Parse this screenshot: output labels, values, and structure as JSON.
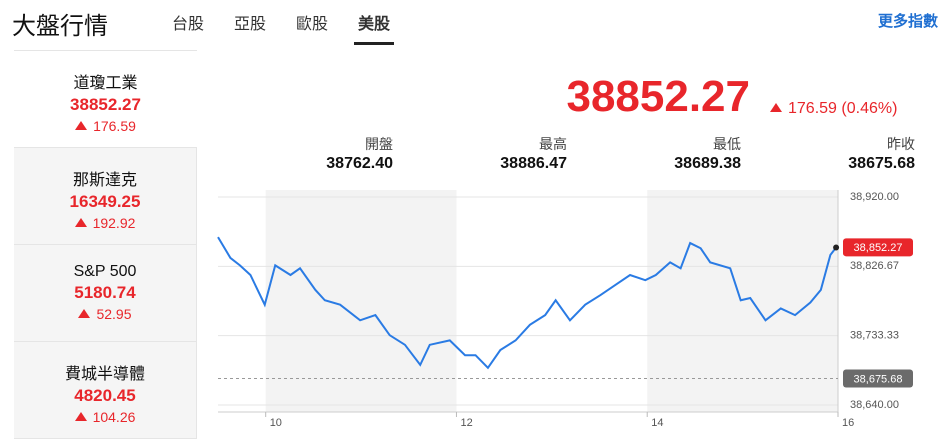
{
  "header": {
    "title": "大盤行情",
    "tabs": [
      "台股",
      "亞股",
      "歐股",
      "美股"
    ],
    "active_tab": 3,
    "more": "更多指數"
  },
  "sidebar": [
    {
      "name": "道瓊工業",
      "value": "38852.27",
      "change": "176.59"
    },
    {
      "name": "那斯達克",
      "value": "16349.25",
      "change": "192.92"
    },
    {
      "name": "S&P 500",
      "value": "5180.74",
      "change": "52.95"
    },
    {
      "name": "費城半導體",
      "value": "4820.45",
      "change": "104.26"
    }
  ],
  "active_item": 0,
  "quote": {
    "value": "38852.27",
    "change": "176.59",
    "change_pct": "(0.46%)",
    "stats": [
      {
        "label": "開盤",
        "value": "38762.40"
      },
      {
        "label": "最高",
        "value": "38886.47"
      },
      {
        "label": "最低",
        "value": "38689.38"
      },
      {
        "label": "昨收",
        "value": "38675.68"
      }
    ]
  },
  "chart_data": {
    "type": "line",
    "x": [
      9.5,
      9.63,
      9.73,
      9.84,
      9.99,
      10.1,
      10.26,
      10.36,
      10.52,
      10.62,
      10.78,
      10.99,
      11.15,
      11.3,
      11.46,
      11.62,
      11.72,
      11.93,
      12.09,
      12.2,
      12.33,
      12.46,
      12.62,
      12.77,
      12.93,
      13.04,
      13.19,
      13.35,
      13.51,
      13.67,
      13.82,
      13.98,
      14.09,
      14.24,
      14.35,
      14.45,
      14.56,
      14.66,
      14.87,
      14.98,
      15.08,
      15.24,
      15.4,
      15.55,
      15.71,
      15.82,
      15.92,
      15.98
    ],
    "series": [
      {
        "color": "#2a7be4",
        "values": [
          38866,
          38838,
          38828,
          38815,
          38775,
          38828,
          38815,
          38824,
          38795,
          38781,
          38775,
          38754,
          38761,
          38734,
          38721,
          38694,
          38721,
          38727,
          38707,
          38707,
          38690,
          38714,
          38727,
          38748,
          38761,
          38781,
          38754,
          38775,
          38788,
          38802,
          38815,
          38808,
          38815,
          38832,
          38824,
          38858,
          38851,
          38832,
          38824,
          38781,
          38784,
          38754,
          38770,
          38761,
          38778,
          38795,
          38842,
          38852
        ]
      }
    ],
    "xlim": [
      9.5,
      16
    ],
    "xticks": [
      10,
      12,
      14,
      16
    ],
    "ylim": [
      38640,
      38920
    ],
    "yticks": [
      {
        "value": 38640,
        "label": "38,640.00"
      },
      {
        "value": 38733.33,
        "label": "38,733.33"
      },
      {
        "value": 38826.67,
        "label": "38,826.67"
      },
      {
        "value": 38920,
        "label": "38,920.00"
      }
    ],
    "bands": [
      [
        10,
        12
      ],
      [
        14,
        16
      ]
    ],
    "last": {
      "value": 38852.27,
      "label": "38,852.27"
    },
    "prev_close": {
      "value": 38675.68,
      "label": "38,675.68"
    }
  }
}
